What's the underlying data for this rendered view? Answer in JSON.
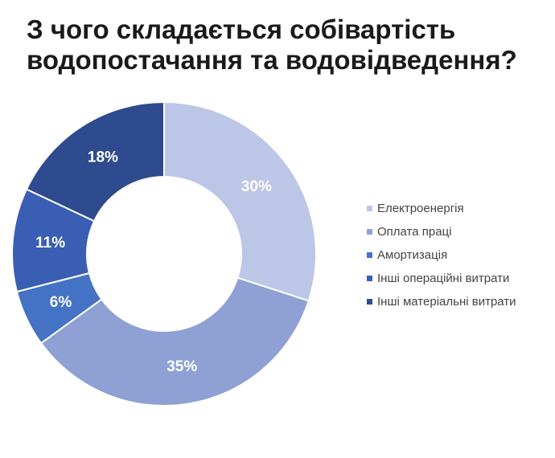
{
  "title_lines": [
    "З чого складається собівартість",
    "водопостачання та водовідведення?"
  ],
  "chart_data": {
    "type": "pie",
    "donut": true,
    "categories": [
      "Електроенергія",
      "Оплата праці",
      "Амортизація",
      "Інші операційні витрати",
      "Інші матеріальні витрати"
    ],
    "values": [
      30,
      35,
      6,
      11,
      18
    ],
    "labels": [
      "30%",
      "35%",
      "6%",
      "11%",
      "18%"
    ],
    "colors": [
      "#bcc6e6",
      "#8fa0d4",
      "#4472c4",
      "#3a5eb3",
      "#2e4b8f"
    ],
    "legend_position": "right"
  }
}
